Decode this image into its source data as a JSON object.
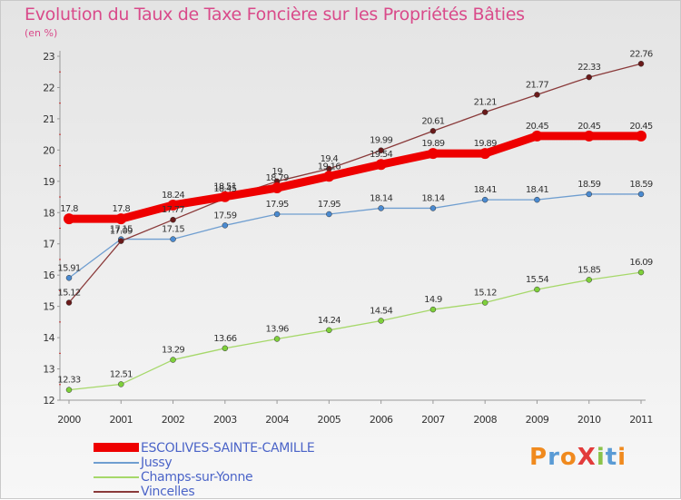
{
  "title": "Evolution du Taux de Taxe Foncière sur les Propriétés Bâties",
  "subtitle": "(en %)",
  "logo": {
    "text": "ProXiti",
    "colors": [
      "#f08a1e",
      "#5a9bd5",
      "#f08a1e",
      "#e23b3b",
      "#8bc34a",
      "#5a9bd5",
      "#f08a1e"
    ]
  },
  "chart_data": {
    "type": "line",
    "x": [
      "2000",
      "2001",
      "2002",
      "2003",
      "2004",
      "2005",
      "2006",
      "2007",
      "2008",
      "2009",
      "2010",
      "2011"
    ],
    "ylim": [
      12,
      23
    ],
    "yticks": [
      12,
      13,
      14,
      15,
      16,
      17,
      18,
      19,
      20,
      21,
      22,
      23
    ],
    "grid": false,
    "legend_position": "bottom-left",
    "series": [
      {
        "name": "ESCOLIVES-SAINTE-CAMILLE",
        "color": "#ee0000",
        "marker": "#ee0000",
        "values": [
          17.8,
          17.8,
          18.24,
          18.51,
          18.79,
          19.16,
          19.54,
          19.89,
          19.89,
          20.45,
          20.45,
          20.45
        ],
        "labels": [
          "17.8",
          "17.8",
          "18.24",
          "18.51",
          "18.79",
          "19.16",
          "19.54",
          "19.89",
          "19.89",
          "20.45",
          "20.45",
          "20.45"
        ]
      },
      {
        "name": "Jussy",
        "color": "#6f9ed0",
        "marker": "#4a8ad0",
        "values": [
          15.91,
          17.15,
          17.15,
          17.59,
          17.95,
          17.95,
          18.14,
          18.14,
          18.41,
          18.41,
          18.59,
          18.59
        ],
        "labels": [
          "15.91",
          "17.15",
          "17.15",
          "17.59",
          "17.95",
          "17.95",
          "18.14",
          "18.14",
          "18.41",
          "18.41",
          "18.59",
          "18.59"
        ]
      },
      {
        "name": "Champs-sur-Yonne",
        "color": "#a6d86a",
        "marker": "#7ed03a",
        "values": [
          12.33,
          12.51,
          13.29,
          13.66,
          13.96,
          14.24,
          14.54,
          14.9,
          15.12,
          15.54,
          15.85,
          16.09
        ],
        "labels": [
          "12.33",
          "12.51",
          "13.29",
          "13.66",
          "13.96",
          "14.24",
          "14.54",
          "14.9",
          "15.12",
          "15.54",
          "15.85",
          "16.09"
        ]
      },
      {
        "name": "Vincelles",
        "color": "#8a3a3a",
        "marker": "#6a1a1a",
        "values": [
          15.12,
          17.09,
          17.77,
          18.45,
          19.0,
          19.4,
          19.99,
          20.61,
          21.21,
          21.77,
          22.33,
          22.76
        ],
        "labels": [
          "15.12",
          "17.09",
          "17.77",
          "18.45",
          "19",
          "19.4",
          "19.99",
          "20.61",
          "21.21",
          "21.77",
          "22.33",
          "22.76"
        ]
      }
    ]
  }
}
